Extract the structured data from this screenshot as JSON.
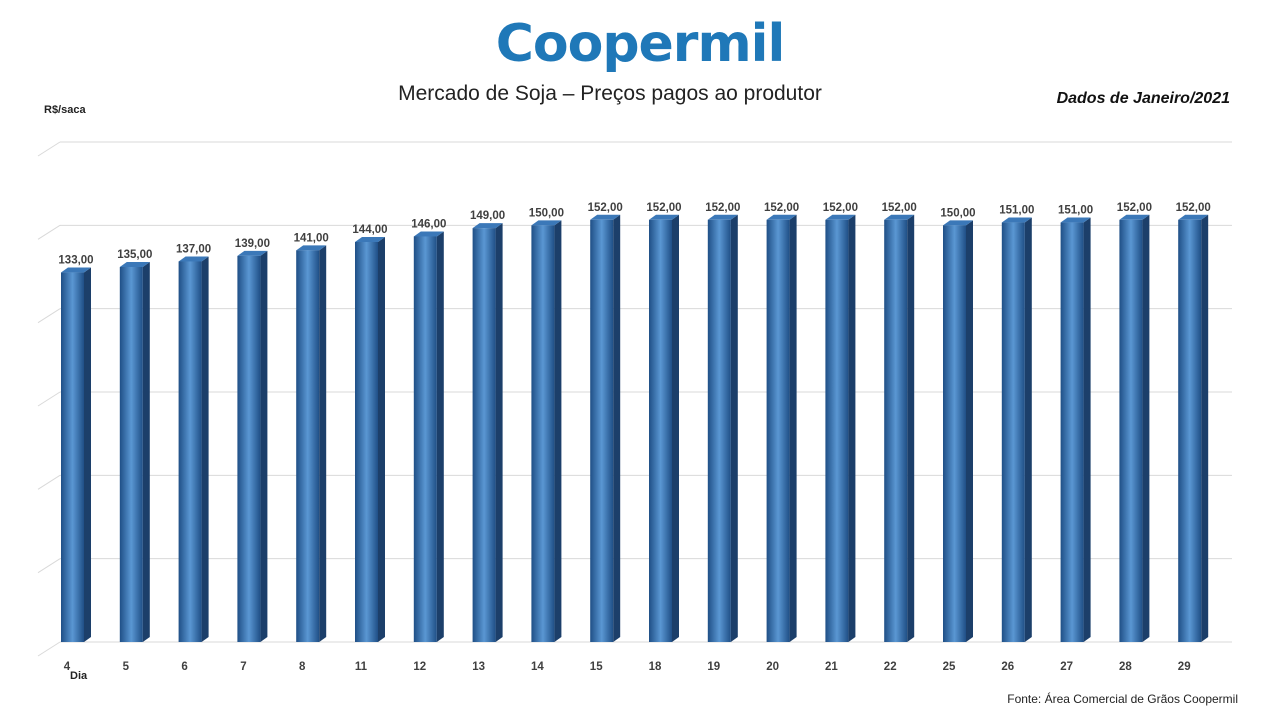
{
  "header": {
    "logo_text": "Coopermil",
    "title": "Mercado de Soja – Preços pagos ao produtor",
    "period": "Dados de Janeiro/2021"
  },
  "footer": {
    "source": "Fonte: Área Comercial de Grãos Coopermil"
  },
  "colors": {
    "bar_front": "#2e64a0",
    "bar_side": "#1c3f6a",
    "bar_top": "#3b78b8",
    "logo": "#1f78b8"
  },
  "chart_data": {
    "type": "bar",
    "title": "Mercado de Soja – Preços pagos ao produtor",
    "xlabel": "Dia",
    "ylabel": "R$/saca",
    "ylim": [
      0,
      180
    ],
    "grid": true,
    "legend": "none",
    "categories": [
      "4",
      "5",
      "6",
      "7",
      "8",
      "11",
      "12",
      "13",
      "14",
      "15",
      "18",
      "19",
      "20",
      "21",
      "22",
      "25",
      "26",
      "27",
      "28",
      "29"
    ],
    "values": [
      133,
      135,
      137,
      139,
      141,
      144,
      146,
      149,
      150,
      152,
      152,
      152,
      152,
      152,
      152,
      150,
      151,
      151,
      152,
      152
    ],
    "labels": [
      "133,00",
      "135,00",
      "137,00",
      "139,00",
      "141,00",
      "144,00",
      "146,00",
      "149,00",
      "150,00",
      "152,00",
      "152,00",
      "152,00",
      "152,00",
      "152,00",
      "152,00",
      "150,00",
      "151,00",
      "151,00",
      "152,00",
      "152,00"
    ]
  }
}
